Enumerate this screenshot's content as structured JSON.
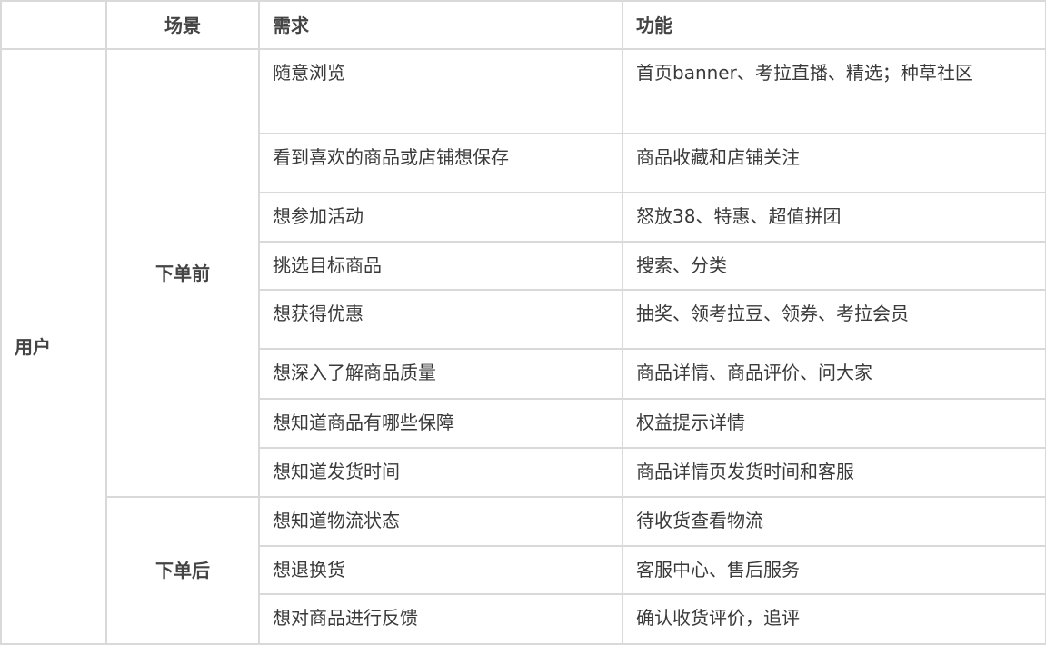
{
  "header": {
    "col1": "",
    "scene": "场景",
    "need": "需求",
    "feature": "功能"
  },
  "role": "用户",
  "groups": [
    {
      "scene": "下单前",
      "rows": [
        {
          "need": "随意浏览",
          "feature": "首页banner、考拉直播、精选；种草社区"
        },
        {
          "need": "看到喜欢的商品或店铺想保存",
          "feature": "商品收藏和店铺关注"
        },
        {
          "need": "想参加活动",
          "feature": "怒放38、特惠、超值拼团"
        },
        {
          "need": "挑选目标商品",
          "feature": "搜索、分类"
        },
        {
          "need": "想获得优惠",
          "feature": "抽奖、领考拉豆、领券、考拉会员"
        },
        {
          "need": "想深入了解商品质量",
          "feature": "商品详情、商品评价、问大家"
        },
        {
          "need": "想知道商品有哪些保障",
          "feature": "权益提示详情"
        },
        {
          "need": "想知道发货时间",
          "feature": "商品详情页发货时间和客服"
        }
      ]
    },
    {
      "scene": "下单后",
      "rows": [
        {
          "need": "想知道物流状态",
          "feature": "待收货查看物流"
        },
        {
          "need": "想退换货",
          "feature": "客服中心、售后服务"
        },
        {
          "need": "想对商品进行反馈",
          "feature": "确认收货评价，追评"
        }
      ]
    }
  ]
}
